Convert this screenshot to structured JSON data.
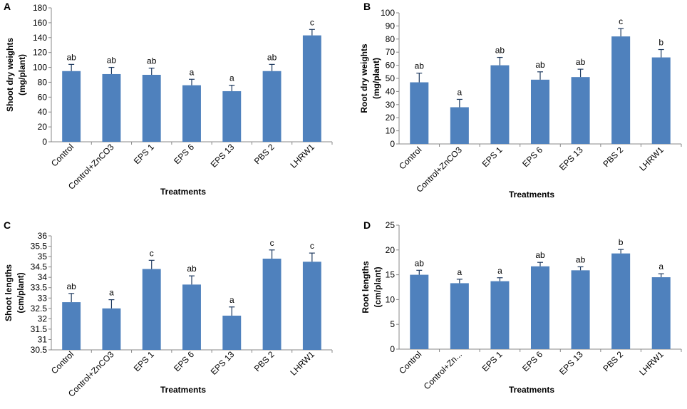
{
  "chart_data": [
    {
      "panel": "A",
      "type": "bar",
      "categories": [
        "Control",
        "Control+ZnCO3",
        "EPS 1",
        "EPS 6",
        "EPS 13",
        "PBS 2",
        "LHRW1"
      ],
      "values": [
        95,
        91,
        90,
        76,
        68,
        95,
        143
      ],
      "errors": [
        9,
        9,
        9,
        8,
        8,
        9,
        8
      ],
      "labels": [
        "ab",
        "ab",
        "ab",
        "a",
        "a",
        "ab",
        "c"
      ],
      "ylabel": [
        "Shoot dry weights",
        "(mg/plant)"
      ],
      "xlabel": "Treatments",
      "ylim": [
        0,
        180
      ],
      "yticks": [
        0,
        20,
        40,
        60,
        80,
        100,
        120,
        140,
        160,
        180
      ],
      "color": "#4f81bd"
    },
    {
      "panel": "B",
      "type": "bar",
      "categories": [
        "Control",
        "Control+ZnCO3",
        "EPS 1",
        "EPS 6",
        "EPS 13",
        "PBS 2",
        "LHRW1"
      ],
      "values": [
        47,
        28,
        60,
        49,
        51,
        82,
        66
      ],
      "errors": [
        7,
        6,
        6,
        6,
        6,
        6,
        6
      ],
      "labels": [
        "ab",
        "a",
        "ab",
        "ab",
        "ab",
        "c",
        "b"
      ],
      "ylabel": [
        "Root dry weights",
        "(mg/plant)"
      ],
      "xlabel": "Treatments",
      "ylim": [
        0,
        100
      ],
      "yticks": [
        0,
        10,
        20,
        30,
        40,
        50,
        60,
        70,
        80,
        90,
        100
      ],
      "color": "#4f81bd"
    },
    {
      "panel": "C",
      "type": "bar",
      "categories": [
        "Control",
        "Control+ZnCO3",
        "EPS 1",
        "EPS 6",
        "EPS 13",
        "PBS 2",
        "LHRW1"
      ],
      "values": [
        32.8,
        32.5,
        34.4,
        33.65,
        32.15,
        34.9,
        34.75
      ],
      "errors": [
        0.42,
        0.42,
        0.42,
        0.42,
        0.42,
        0.42,
        0.42
      ],
      "labels": [
        "ab",
        "a",
        "c",
        "ab",
        "a",
        "c",
        "c"
      ],
      "ylabel": [
        "Shoot lengths",
        "(cm/plant)"
      ],
      "xlabel": "Treatments",
      "ylim": [
        30.5,
        36
      ],
      "yticks": [
        "30.5",
        "31",
        "31.5",
        "32",
        "32.5",
        "33",
        "33.5",
        "34",
        "34.5",
        "35",
        "35.5",
        "36"
      ],
      "color": "#4f81bd"
    },
    {
      "panel": "D",
      "type": "bar",
      "categories": [
        "Control",
        "Control+Zn...",
        "EPS 1",
        "EPS 6",
        "EPS 13",
        "PBS 2",
        "LHRW1"
      ],
      "values": [
        15,
        13.3,
        13.7,
        16.7,
        15.9,
        19.3,
        14.5
      ],
      "errors": [
        0.9,
        0.8,
        0.7,
        0.8,
        0.7,
        0.8,
        0.7
      ],
      "labels": [
        "ab",
        "a",
        "a",
        "ab",
        "ab",
        "b",
        "a"
      ],
      "ylabel": [
        "Root lengths",
        "(cm/plant)"
      ],
      "xlabel": "Treatments",
      "ylim": [
        0,
        25
      ],
      "yticks": [
        0,
        5,
        10,
        15,
        20,
        25
      ],
      "color": "#4f81bd"
    }
  ]
}
